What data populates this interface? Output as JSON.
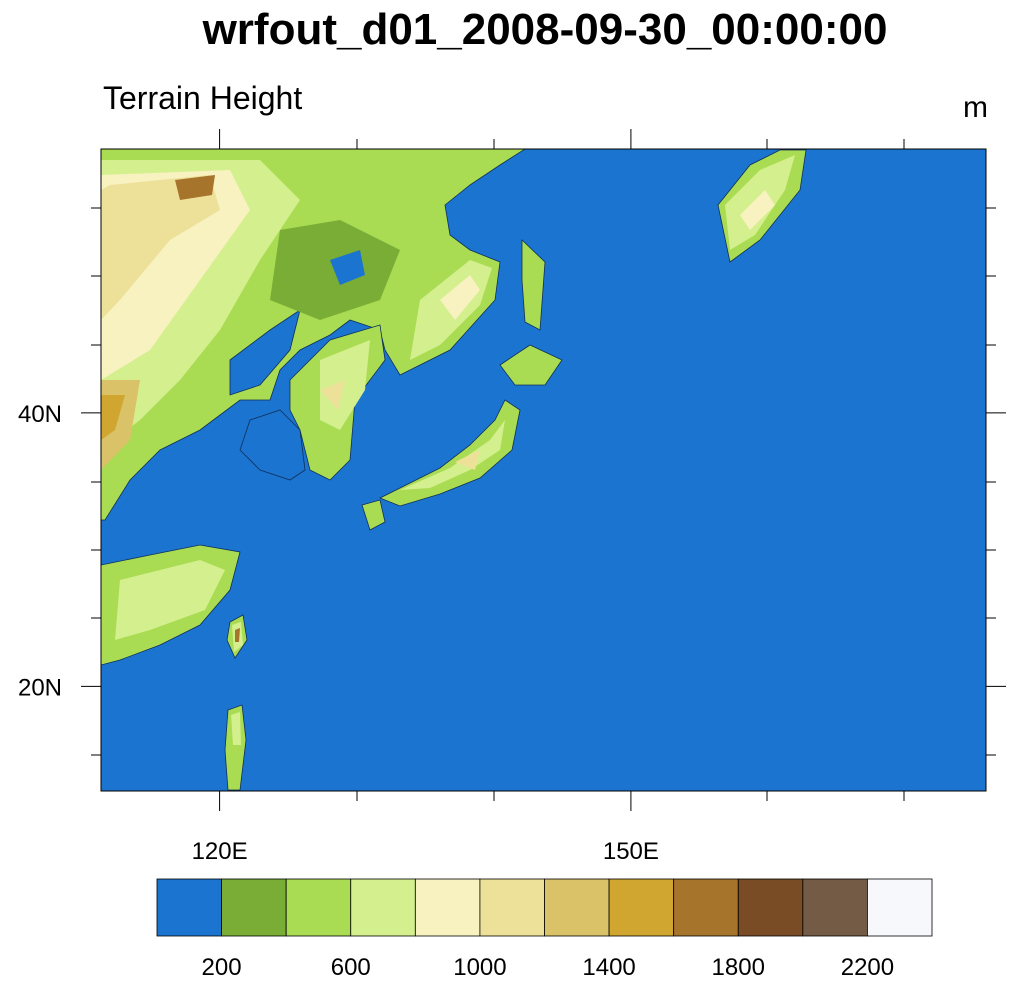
{
  "header": {
    "title": "wrfout_d01_2008-09-30_00:00:00",
    "subtitle": "Terrain Height",
    "units": "m"
  },
  "map": {
    "xlim": [
      111.35,
      175.9
    ],
    "ylim": [
      12.35,
      59.3
    ],
    "xticks": [
      {
        "value": 120,
        "label": "120E"
      },
      {
        "value": 150,
        "label": "150E"
      }
    ],
    "yticks": [
      {
        "value": 40,
        "label": "40N"
      },
      {
        "value": 20,
        "label": "20N"
      }
    ]
  },
  "colorbar": {
    "colors": [
      "#1b74cf",
      "#79ad35",
      "#a9dc52",
      "#d4ef8d",
      "#f7f2c0",
      "#ede19a",
      "#d9c268",
      "#d0a631",
      "#a6742b",
      "#794c25",
      "#735b46",
      "#f7f8fc"
    ],
    "ticks": [
      200,
      600,
      1000,
      1400,
      1800,
      2200
    ]
  }
}
